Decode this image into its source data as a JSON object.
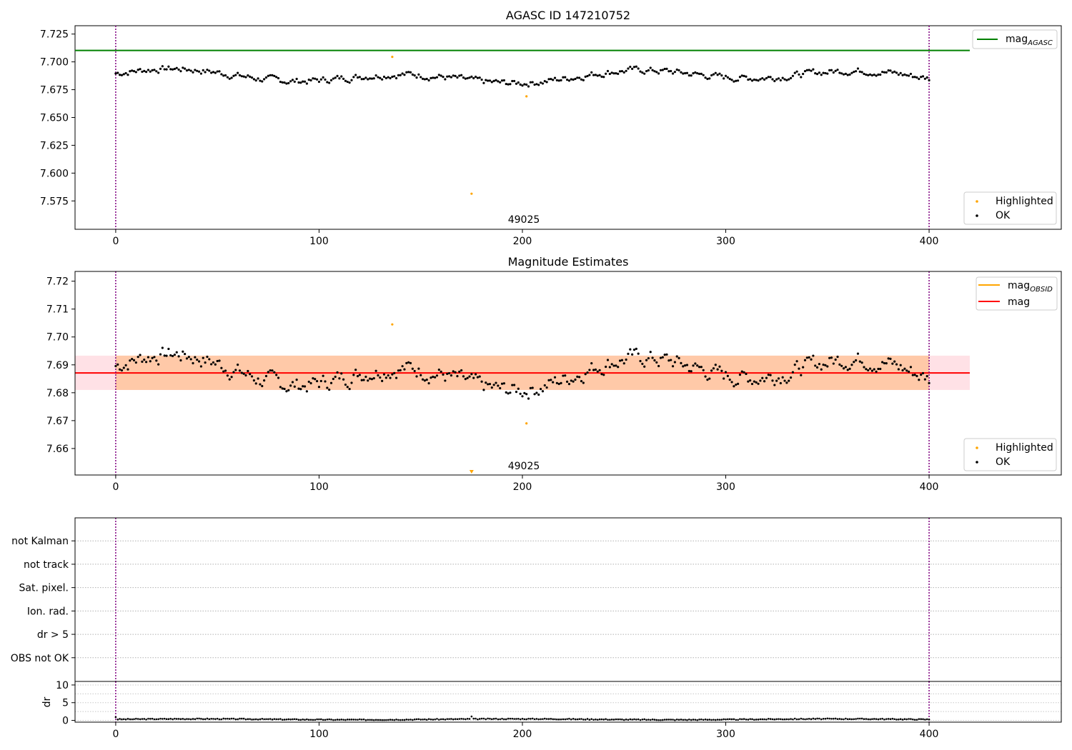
{
  "chart_data": [
    {
      "type": "scatter",
      "title": "AGASC ID 147210752",
      "annotation": "49025",
      "xlim": [
        -20,
        465
      ],
      "ylim": [
        7.5495,
        7.7325
      ],
      "x_ticks": [
        0,
        100,
        200,
        300,
        400
      ],
      "y_ticks": [
        7.575,
        7.6,
        7.625,
        7.65,
        7.675,
        7.7,
        7.725
      ],
      "y_tick_labels": [
        "7.575",
        "7.600",
        "7.625",
        "7.650",
        "7.675",
        "7.700",
        "7.725"
      ],
      "vlines": [
        0,
        400
      ],
      "hline": {
        "name": "mag",
        "subscript": "AGASC",
        "y": 7.7103,
        "x_range": [
          -20,
          420
        ],
        "color": "#008000"
      },
      "legend_points": [
        "Highlighted",
        "OK"
      ],
      "highlighted": [
        [
          136,
          7.7045
        ],
        [
          175,
          7.5815
        ],
        [
          202,
          7.669
        ]
      ],
      "ok_series": {
        "n": 401,
        "x_start": 0,
        "x_step": 1,
        "base": 7.687,
        "amplitude": 0.011,
        "seed": 7
      }
    },
    {
      "type": "scatter",
      "title": "Magnitude Estimates",
      "annotation": "49025",
      "xlim": [
        -20,
        465
      ],
      "ylim": [
        7.6505,
        7.7235
      ],
      "x_ticks": [
        0,
        100,
        200,
        300,
        400
      ],
      "y_ticks": [
        7.66,
        7.67,
        7.68,
        7.69,
        7.7,
        7.71,
        7.72
      ],
      "y_tick_labels": [
        "7.66",
        "7.67",
        "7.68",
        "7.69",
        "7.70",
        "7.71",
        "7.72"
      ],
      "vlines": [
        0,
        400
      ],
      "band_obsid": {
        "y_low": 7.681,
        "y_high": 7.6933,
        "x_range": [
          0,
          400
        ],
        "color": "#ffc9a8"
      },
      "band_mag": {
        "y_low": 7.681,
        "y_high": 7.6933,
        "x_range": [
          -20,
          420
        ],
        "color": "#ffe1e6"
      },
      "mag_line": {
        "name": "mag",
        "y": 7.6871,
        "x_range": [
          -20,
          420
        ],
        "color": "#ff0000"
      },
      "obsid_line": {
        "name": "mag",
        "subscript": "OBSID",
        "color": "#ffa500"
      },
      "legend_points": [
        "Highlighted",
        "OK"
      ],
      "highlighted": [
        [
          136,
          7.7045
        ],
        [
          202,
          7.669
        ]
      ],
      "offscale_marker": {
        "x": 175,
        "y": 7.6515
      },
      "ok_series": {
        "n": 401,
        "x_start": 0,
        "x_step": 1,
        "base": 7.687,
        "amplitude": 0.011,
        "seed": 7
      }
    },
    {
      "type": "flags",
      "xlim": [
        -20,
        465
      ],
      "categories": [
        "not Kalman",
        "not track",
        "Sat. pixel.",
        "Ion. rad.",
        "dr > 5",
        "OBS not OK"
      ],
      "vlines": [
        0,
        400
      ],
      "flagged_points": []
    },
    {
      "type": "scatter",
      "ylabel": "dr",
      "xlim": [
        -20,
        465
      ],
      "ylim": [
        -0.5,
        11
      ],
      "x_ticks": [
        0,
        100,
        200,
        300,
        400
      ],
      "y_ticks": [
        0,
        5,
        10
      ],
      "y_tick_labels": [
        "0",
        "5",
        "10"
      ],
      "vlines": [
        0,
        400
      ],
      "dr_series": {
        "n": 401,
        "base": 0.3,
        "amplitude": 0.25,
        "spike": [
          [
            175,
            1.1
          ],
          [
            0,
            0.9
          ]
        ]
      }
    }
  ]
}
